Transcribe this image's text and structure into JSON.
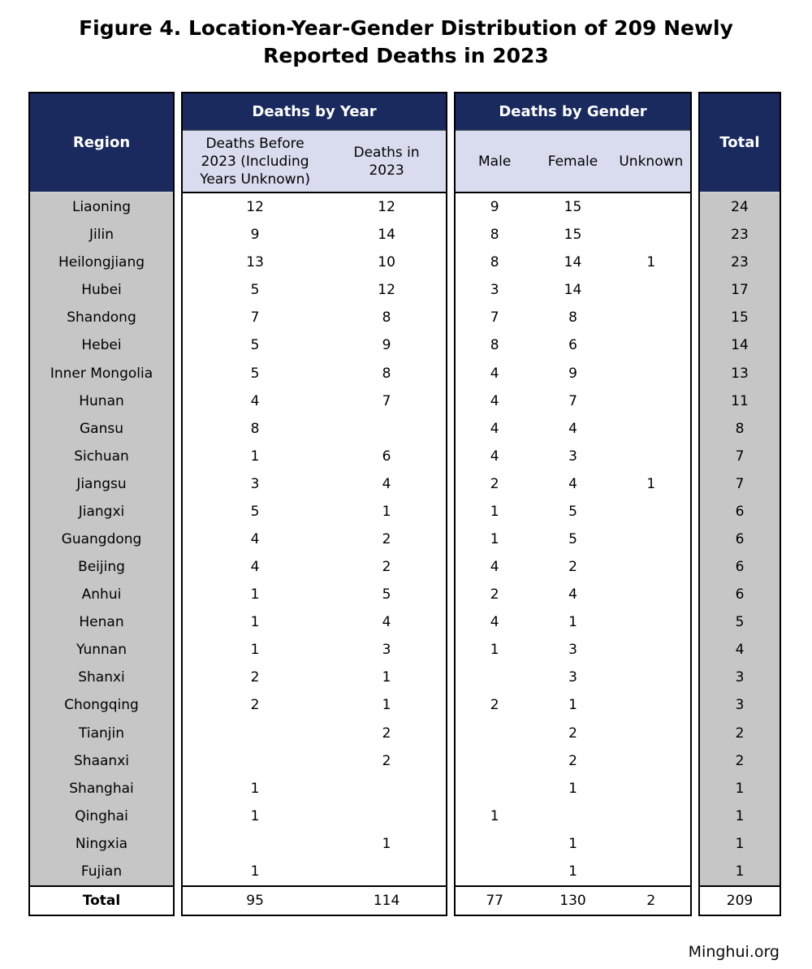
{
  "title": {
    "line1": "Figure 4. Location-Year-Gender Distribution of 209 Newly",
    "line2": "Reported Deaths in 2023"
  },
  "footer": {
    "brand": "Minghui.org"
  },
  "colors": {
    "header_navy": "#1a2a5e",
    "subheader_lavender": "#d9dcef",
    "region_gray": "#c6c6c6",
    "border_black": "#000000"
  },
  "table": {
    "region_header": "Region",
    "total_header": "Total",
    "year_group": {
      "label": "Deaths by Year",
      "col1": "Deaths Before 2023 (Including Years Unknown)",
      "col2": "Deaths in 2023"
    },
    "gender_group": {
      "label": "Deaths by Gender",
      "col1": "Male",
      "col2": "Female",
      "col3": "Unknown"
    },
    "rows": [
      {
        "region": "Liaoning",
        "before_2023": "12",
        "in_2023": "12",
        "male": "9",
        "female": "15",
        "unknown": "",
        "total": "24"
      },
      {
        "region": "Jilin",
        "before_2023": "9",
        "in_2023": "14",
        "male": "8",
        "female": "15",
        "unknown": "",
        "total": "23"
      },
      {
        "region": "Heilongjiang",
        "before_2023": "13",
        "in_2023": "10",
        "male": "8",
        "female": "14",
        "unknown": "1",
        "total": "23"
      },
      {
        "region": "Hubei",
        "before_2023": "5",
        "in_2023": "12",
        "male": "3",
        "female": "14",
        "unknown": "",
        "total": "17"
      },
      {
        "region": "Shandong",
        "before_2023": "7",
        "in_2023": "8",
        "male": "7",
        "female": "8",
        "unknown": "",
        "total": "15"
      },
      {
        "region": "Hebei",
        "before_2023": "5",
        "in_2023": "9",
        "male": "8",
        "female": "6",
        "unknown": "",
        "total": "14"
      },
      {
        "region": "Inner Mongolia",
        "before_2023": "5",
        "in_2023": "8",
        "male": "4",
        "female": "9",
        "unknown": "",
        "total": "13"
      },
      {
        "region": "Hunan",
        "before_2023": "4",
        "in_2023": "7",
        "male": "4",
        "female": "7",
        "unknown": "",
        "total": "11"
      },
      {
        "region": "Gansu",
        "before_2023": "8",
        "in_2023": "",
        "male": "4",
        "female": "4",
        "unknown": "",
        "total": "8"
      },
      {
        "region": "Sichuan",
        "before_2023": "1",
        "in_2023": "6",
        "male": "4",
        "female": "3",
        "unknown": "",
        "total": "7"
      },
      {
        "region": "Jiangsu",
        "before_2023": "3",
        "in_2023": "4",
        "male": "2",
        "female": "4",
        "unknown": "1",
        "total": "7"
      },
      {
        "region": "Jiangxi",
        "before_2023": "5",
        "in_2023": "1",
        "male": "1",
        "female": "5",
        "unknown": "",
        "total": "6"
      },
      {
        "region": "Guangdong",
        "before_2023": "4",
        "in_2023": "2",
        "male": "1",
        "female": "5",
        "unknown": "",
        "total": "6"
      },
      {
        "region": "Beijing",
        "before_2023": "4",
        "in_2023": "2",
        "male": "4",
        "female": "2",
        "unknown": "",
        "total": "6"
      },
      {
        "region": "Anhui",
        "before_2023": "1",
        "in_2023": "5",
        "male": "2",
        "female": "4",
        "unknown": "",
        "total": "6"
      },
      {
        "region": "Henan",
        "before_2023": "1",
        "in_2023": "4",
        "male": "4",
        "female": "1",
        "unknown": "",
        "total": "5"
      },
      {
        "region": "Yunnan",
        "before_2023": "1",
        "in_2023": "3",
        "male": "1",
        "female": "3",
        "unknown": "",
        "total": "4"
      },
      {
        "region": "Shanxi",
        "before_2023": "2",
        "in_2023": "1",
        "male": "",
        "female": "3",
        "unknown": "",
        "total": "3"
      },
      {
        "region": "Chongqing",
        "before_2023": "2",
        "in_2023": "1",
        "male": "2",
        "female": "1",
        "unknown": "",
        "total": "3"
      },
      {
        "region": "Tianjin",
        "before_2023": "",
        "in_2023": "2",
        "male": "",
        "female": "2",
        "unknown": "",
        "total": "2"
      },
      {
        "region": "Shaanxi",
        "before_2023": "",
        "in_2023": "2",
        "male": "",
        "female": "2",
        "unknown": "",
        "total": "2"
      },
      {
        "region": "Shanghai",
        "before_2023": "1",
        "in_2023": "",
        "male": "",
        "female": "1",
        "unknown": "",
        "total": "1"
      },
      {
        "region": "Qinghai",
        "before_2023": "1",
        "in_2023": "",
        "male": "1",
        "female": "",
        "unknown": "",
        "total": "1"
      },
      {
        "region": "Ningxia",
        "before_2023": "",
        "in_2023": "1",
        "male": "",
        "female": "1",
        "unknown": "",
        "total": "1"
      },
      {
        "region": "Fujian",
        "before_2023": "1",
        "in_2023": "",
        "male": "",
        "female": "1",
        "unknown": "",
        "total": "1"
      }
    ],
    "totals": {
      "label": "Total",
      "before_2023": "95",
      "in_2023": "114",
      "male": "77",
      "female": "130",
      "unknown": "2",
      "total": "209"
    }
  },
  "chart_data": {
    "type": "table",
    "title": "Figure 4. Location-Year-Gender Distribution of 209 Newly Reported Deaths in 2023",
    "columns": [
      "Region",
      "Deaths Before 2023 (Including Years Unknown)",
      "Deaths in 2023",
      "Male",
      "Female",
      "Unknown",
      "Total"
    ],
    "rows": [
      [
        "Liaoning",
        12,
        12,
        9,
        15,
        null,
        24
      ],
      [
        "Jilin",
        9,
        14,
        8,
        15,
        null,
        23
      ],
      [
        "Heilongjiang",
        13,
        10,
        8,
        14,
        1,
        23
      ],
      [
        "Hubei",
        5,
        12,
        3,
        14,
        null,
        17
      ],
      [
        "Shandong",
        7,
        8,
        7,
        8,
        null,
        15
      ],
      [
        "Hebei",
        5,
        9,
        8,
        6,
        null,
        14
      ],
      [
        "Inner Mongolia",
        5,
        8,
        4,
        9,
        null,
        13
      ],
      [
        "Hunan",
        4,
        7,
        4,
        7,
        null,
        11
      ],
      [
        "Gansu",
        8,
        null,
        4,
        4,
        null,
        8
      ],
      [
        "Sichuan",
        1,
        6,
        4,
        3,
        null,
        7
      ],
      [
        "Jiangsu",
        3,
        4,
        2,
        4,
        1,
        7
      ],
      [
        "Jiangxi",
        5,
        1,
        1,
        5,
        null,
        6
      ],
      [
        "Guangdong",
        4,
        2,
        1,
        5,
        null,
        6
      ],
      [
        "Beijing",
        4,
        2,
        4,
        2,
        null,
        6
      ],
      [
        "Anhui",
        1,
        5,
        2,
        4,
        null,
        6
      ],
      [
        "Henan",
        1,
        4,
        4,
        1,
        null,
        5
      ],
      [
        "Yunnan",
        1,
        3,
        1,
        3,
        null,
        4
      ],
      [
        "Shanxi",
        2,
        1,
        null,
        3,
        null,
        3
      ],
      [
        "Chongqing",
        2,
        1,
        2,
        1,
        null,
        3
      ],
      [
        "Tianjin",
        null,
        2,
        null,
        2,
        null,
        2
      ],
      [
        "Shaanxi",
        null,
        2,
        null,
        2,
        null,
        2
      ],
      [
        "Shanghai",
        1,
        null,
        null,
        1,
        null,
        1
      ],
      [
        "Qinghai",
        1,
        null,
        1,
        null,
        null,
        1
      ],
      [
        "Ningxia",
        null,
        1,
        null,
        1,
        null,
        1
      ],
      [
        "Fujian",
        1,
        null,
        null,
        1,
        null,
        1
      ]
    ],
    "totals_row": [
      "Total",
      95,
      114,
      77,
      130,
      2,
      209
    ]
  }
}
